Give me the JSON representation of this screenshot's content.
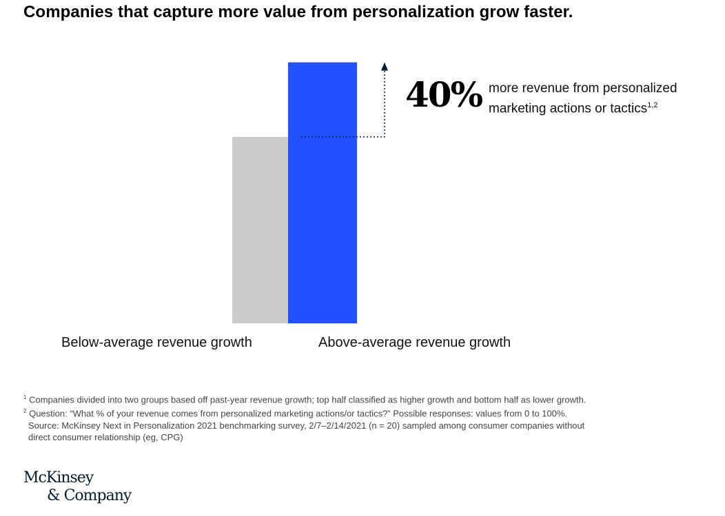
{
  "title": "Companies that capture more value from personalization grow faster.",
  "chart_data": {
    "type": "bar",
    "categories": [
      "Below-average revenue growth",
      "Above-average revenue growth"
    ],
    "values": [
      1.0,
      1.4
    ],
    "colors": [
      "#cccccc",
      "#2251ff"
    ],
    "title": "Companies that capture more value from personalization grow faster.",
    "xlabel": "",
    "ylabel": "",
    "grid": false,
    "annotation": {
      "value": "40%",
      "text_line1": "more revenue from personalized",
      "text_line2": "marketing actions or tactics",
      "footnote_refs": "1,2"
    }
  },
  "footnotes": {
    "f1_mark": "1",
    "f1": "Companies divided into two groups based off past-year revenue growth; top half classified as higher growth and bottom half as lower growth.",
    "f2_mark": "2",
    "f2": "Question: “What % of your revenue comes from personalized marketing actions/or tactics?” Possible responses: values from 0 to 100%.",
    "source1": "Source: McKinsey Next in Personalization 2021 benchmarking survey, 2/7–2/14/2021 (n = 20) sampled among consumer companies without",
    "source2": "direct consumer relationship (eg, CPG)"
  },
  "logo": {
    "line1": "McKinsey",
    "line2": "& Company"
  }
}
